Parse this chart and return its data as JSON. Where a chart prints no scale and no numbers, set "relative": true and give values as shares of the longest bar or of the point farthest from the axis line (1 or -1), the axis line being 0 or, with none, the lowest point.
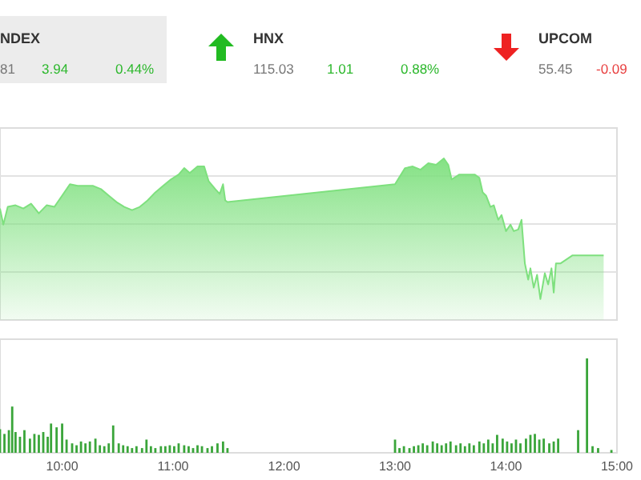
{
  "chart_data": [
    {
      "type": "other",
      "annotations": [
        "NDEX",
        "81",
        "3.94",
        "0.44%",
        "HNX",
        "115.03",
        "1.01",
        "0.88%",
        "UPCOM",
        "55.45",
        "-0.09"
      ],
      "colors": [
        "#333333",
        "#777777",
        "#2db82d",
        "#2db82d",
        "#333333",
        "#777777",
        "#2db82d",
        "#2db82d",
        "#333333",
        "#777777",
        "#e84040"
      ]
    },
    {
      "type": "area",
      "relative": true,
      "grid": true,
      "tick_labels": false,
      "xlim": [
        9.44,
        15.0
      ],
      "x": [
        9.44,
        9.47,
        9.51,
        9.58,
        9.65,
        9.72,
        9.79,
        9.86,
        9.93,
        10.0,
        10.07,
        10.14,
        10.21,
        10.28,
        10.35,
        10.42,
        10.49,
        10.56,
        10.63,
        10.7,
        10.77,
        10.84,
        10.91,
        10.98,
        11.05,
        11.1,
        11.15,
        11.22,
        11.28,
        11.32,
        11.38,
        11.42,
        11.45,
        11.47,
        11.49,
        13.0,
        13.09,
        13.16,
        13.23,
        13.3,
        13.37,
        13.44,
        13.48,
        13.51,
        13.58,
        13.65,
        13.72,
        13.76,
        13.79,
        13.82,
        13.86,
        13.89,
        13.93,
        13.96,
        14.0,
        14.04,
        14.07,
        14.11,
        14.14,
        14.17,
        14.2,
        14.22,
        14.25,
        14.28,
        14.31,
        14.35,
        14.38,
        14.41,
        14.43,
        14.45,
        14.49,
        14.6,
        14.66,
        14.88
      ],
      "series": [
        {
          "color": "#7ee07e",
          "values": [
            0.69,
            0.59,
            0.7,
            0.71,
            0.69,
            0.72,
            0.66,
            0.71,
            0.7,
            0.77,
            0.84,
            0.83,
            0.83,
            0.83,
            0.81,
            0.77,
            0.73,
            0.7,
            0.68,
            0.7,
            0.74,
            0.79,
            0.83,
            0.87,
            0.9,
            0.94,
            0.91,
            0.95,
            0.95,
            0.86,
            0.81,
            0.78,
            0.84,
            0.74,
            0.73,
            0.84,
            0.94,
            0.95,
            0.93,
            0.97,
            0.96,
            1.0,
            0.96,
            0.87,
            0.9,
            0.9,
            0.9,
            0.88,
            0.79,
            0.77,
            0.7,
            0.71,
            0.62,
            0.65,
            0.55,
            0.59,
            0.55,
            0.56,
            0.62,
            0.35,
            0.25,
            0.32,
            0.2,
            0.28,
            0.13,
            0.29,
            0.22,
            0.32,
            0.17,
            0.35,
            0.35,
            0.4,
            0.4,
            0.4
          ]
        }
      ]
    },
    {
      "type": "bar",
      "relative": true,
      "tick_labels": "x",
      "xlim": [
        9.44,
        15.0
      ],
      "xticks": [
        {
          "value": 10,
          "label": "10:00"
        },
        {
          "value": 11,
          "label": "11:00"
        },
        {
          "value": 12,
          "label": "12:00"
        },
        {
          "value": 13,
          "label": "13:00"
        },
        {
          "value": 14,
          "label": "14:00"
        },
        {
          "value": 15,
          "label": "15:00"
        }
      ],
      "x": [
        9.44,
        9.48,
        9.52,
        9.55,
        9.58,
        9.62,
        9.66,
        9.71,
        9.75,
        9.79,
        9.83,
        9.87,
        9.9,
        9.95,
        10.0,
        10.04,
        10.09,
        10.13,
        10.17,
        10.21,
        10.25,
        10.3,
        10.34,
        10.38,
        10.42,
        10.46,
        10.51,
        10.55,
        10.59,
        10.63,
        10.67,
        10.72,
        10.76,
        10.8,
        10.84,
        10.89,
        10.93,
        10.97,
        11.01,
        11.05,
        11.1,
        11.14,
        11.18,
        11.22,
        11.26,
        11.31,
        11.35,
        11.4,
        11.45,
        11.49,
        13.0,
        13.04,
        13.08,
        13.13,
        13.17,
        13.21,
        13.25,
        13.29,
        13.34,
        13.38,
        13.42,
        13.46,
        13.5,
        13.55,
        13.59,
        13.63,
        13.67,
        13.71,
        13.76,
        13.8,
        13.84,
        13.88,
        13.92,
        13.97,
        14.01,
        14.05,
        14.09,
        14.13,
        14.18,
        14.22,
        14.26,
        14.3,
        14.34,
        14.39,
        14.43,
        14.47,
        14.65,
        14.73,
        14.78,
        14.83,
        14.95
      ],
      "series": [
        {
          "color": "#3aa53a",
          "values": [
            0.25,
            0.2,
            0.24,
            0.49,
            0.22,
            0.17,
            0.24,
            0.15,
            0.2,
            0.19,
            0.22,
            0.17,
            0.31,
            0.27,
            0.31,
            0.14,
            0.1,
            0.08,
            0.12,
            0.1,
            0.12,
            0.15,
            0.08,
            0.07,
            0.1,
            0.29,
            0.1,
            0.08,
            0.07,
            0.05,
            0.07,
            0.05,
            0.14,
            0.07,
            0.05,
            0.07,
            0.07,
            0.08,
            0.07,
            0.1,
            0.08,
            0.07,
            0.05,
            0.08,
            0.07,
            0.05,
            0.07,
            0.1,
            0.12,
            0.05,
            0.14,
            0.05,
            0.07,
            0.05,
            0.07,
            0.08,
            0.1,
            0.08,
            0.12,
            0.1,
            0.08,
            0.1,
            0.12,
            0.08,
            0.1,
            0.07,
            0.1,
            0.08,
            0.12,
            0.1,
            0.14,
            0.1,
            0.19,
            0.15,
            0.12,
            0.1,
            0.14,
            0.1,
            0.15,
            0.19,
            0.2,
            0.14,
            0.15,
            0.1,
            0.12,
            0.15,
            0.24,
            1,
            0.07,
            0.05,
            0.03
          ]
        }
      ]
    }
  ]
}
